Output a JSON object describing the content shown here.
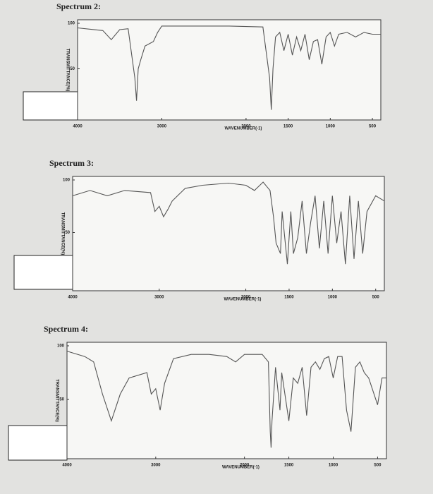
{
  "chart_data": [
    {
      "type": "line",
      "title": "Spectrum 2:",
      "xlabel": "WAVENUMBER(-1)",
      "ylabel": "TRANSMITTANCE(%)",
      "color": "#555555",
      "xlim": [
        4000,
        400
      ],
      "ylim": [
        0,
        100
      ],
      "xticks": [
        4000,
        3000,
        2000,
        1500,
        1000,
        500
      ],
      "yticks": [
        100,
        50
      ],
      "x": [
        4000,
        3700,
        3600,
        3500,
        3400,
        3320,
        3300,
        3280,
        3250,
        3200,
        3100,
        3050,
        3000,
        2500,
        2200,
        1800,
        1720,
        1700,
        1680,
        1650,
        1600,
        1550,
        1500,
        1450,
        1400,
        1350,
        1300,
        1250,
        1200,
        1150,
        1100,
        1050,
        1000,
        950,
        900,
        800,
        700,
        600,
        500,
        400
      ],
      "values": [
        95,
        92,
        82,
        93,
        94,
        40,
        15,
        50,
        60,
        75,
        80,
        90,
        97,
        97,
        97,
        96,
        40,
        5,
        50,
        85,
        90,
        70,
        88,
        65,
        85,
        70,
        88,
        60,
        80,
        82,
        55,
        85,
        90,
        75,
        88,
        90,
        85,
        90,
        88,
        88
      ]
    },
    {
      "type": "line",
      "title": "Spectrum 3:",
      "xlabel": "WAVENUMBER(-1)",
      "ylabel": "TRANSMITTANCE(%)",
      "color": "#555555",
      "xlim": [
        4000,
        400
      ],
      "ylim": [
        0,
        100
      ],
      "xticks": [
        4000,
        3000,
        2000,
        1500,
        1000,
        500
      ],
      "yticks": [
        100,
        50
      ],
      "x": [
        4000,
        3800,
        3600,
        3400,
        3100,
        3050,
        3000,
        2950,
        2900,
        2850,
        2700,
        2500,
        2200,
        2000,
        1900,
        1800,
        1720,
        1680,
        1650,
        1600,
        1580,
        1520,
        1480,
        1450,
        1400,
        1350,
        1300,
        1250,
        1200,
        1150,
        1100,
        1050,
        1000,
        950,
        900,
        850,
        800,
        750,
        700,
        650,
        600,
        500,
        400
      ],
      "values": [
        85,
        90,
        85,
        90,
        88,
        70,
        75,
        65,
        72,
        80,
        92,
        95,
        97,
        95,
        90,
        98,
        90,
        65,
        40,
        30,
        70,
        20,
        70,
        30,
        45,
        80,
        30,
        60,
        85,
        35,
        80,
        30,
        85,
        40,
        70,
        20,
        85,
        25,
        80,
        30,
        70,
        85,
        80
      ]
    },
    {
      "type": "line",
      "title": "Spectrum 4:",
      "xlabel": "WAVENUMBER(-1)",
      "ylabel": "TRANSMITTANCE(%)",
      "color": "#555555",
      "xlim": [
        4000,
        400
      ],
      "ylim": [
        0,
        100
      ],
      "xticks": [
        4000,
        3000,
        2000,
        1500,
        1000,
        500
      ],
      "yticks": [
        100,
        50
      ],
      "x": [
        4000,
        3800,
        3700,
        3600,
        3500,
        3400,
        3300,
        3100,
        3050,
        3000,
        2950,
        2900,
        2800,
        2600,
        2400,
        2200,
        2100,
        2000,
        1800,
        1730,
        1710,
        1700,
        1690,
        1650,
        1600,
        1580,
        1500,
        1450,
        1400,
        1350,
        1300,
        1250,
        1200,
        1150,
        1100,
        1050,
        1000,
        950,
        900,
        850,
        800,
        750,
        700,
        650,
        600,
        500,
        450,
        400
      ],
      "values": [
        95,
        90,
        85,
        55,
        30,
        55,
        70,
        75,
        55,
        60,
        40,
        65,
        88,
        92,
        92,
        90,
        85,
        92,
        92,
        85,
        20,
        5,
        30,
        80,
        40,
        75,
        30,
        70,
        65,
        80,
        35,
        80,
        85,
        78,
        88,
        90,
        70,
        90,
        90,
        40,
        20,
        80,
        85,
        75,
        70,
        45,
        70,
        70
      ]
    }
  ]
}
